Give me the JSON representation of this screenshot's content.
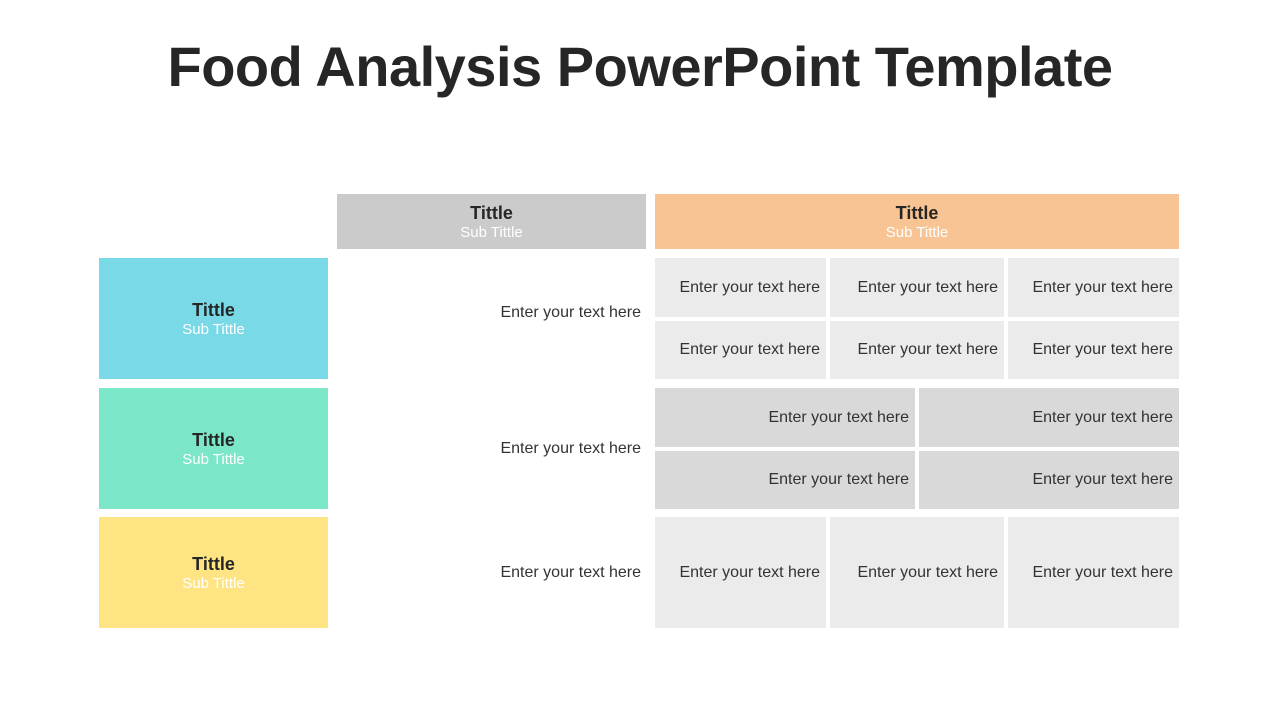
{
  "title": "Food Analysis PowerPoint Template",
  "colors": {
    "header_gray": "#cbcbcb",
    "header_orange": "#f9c493",
    "row1": "#79d9e7",
    "row2": "#7be7c8",
    "row3": "#fee482",
    "cell_light": "#ebebeb",
    "cell_dark": "#d9d9d9"
  },
  "headers": [
    {
      "title": "Tittle",
      "subtitle": "Sub Tittle"
    },
    {
      "title": "Tittle",
      "subtitle": "Sub Tittle"
    }
  ],
  "rows": [
    {
      "title": "Tittle",
      "subtitle": "Sub Tittle",
      "middle": "Enter your text here",
      "cells": [
        "Enter your text here",
        "Enter your text here",
        "Enter your text here",
        "Enter your text here",
        "Enter your text here",
        "Enter your text here"
      ]
    },
    {
      "title": "Tittle",
      "subtitle": "Sub Tittle",
      "middle": "Enter your text here",
      "cells": [
        "Enter your text here",
        "Enter your text here",
        "Enter your text here",
        "Enter your text here"
      ]
    },
    {
      "title": "Tittle",
      "subtitle": "Sub Tittle",
      "middle": "Enter your text here",
      "cells": [
        "Enter your text here",
        "Enter your text here",
        "Enter your text here"
      ]
    }
  ]
}
